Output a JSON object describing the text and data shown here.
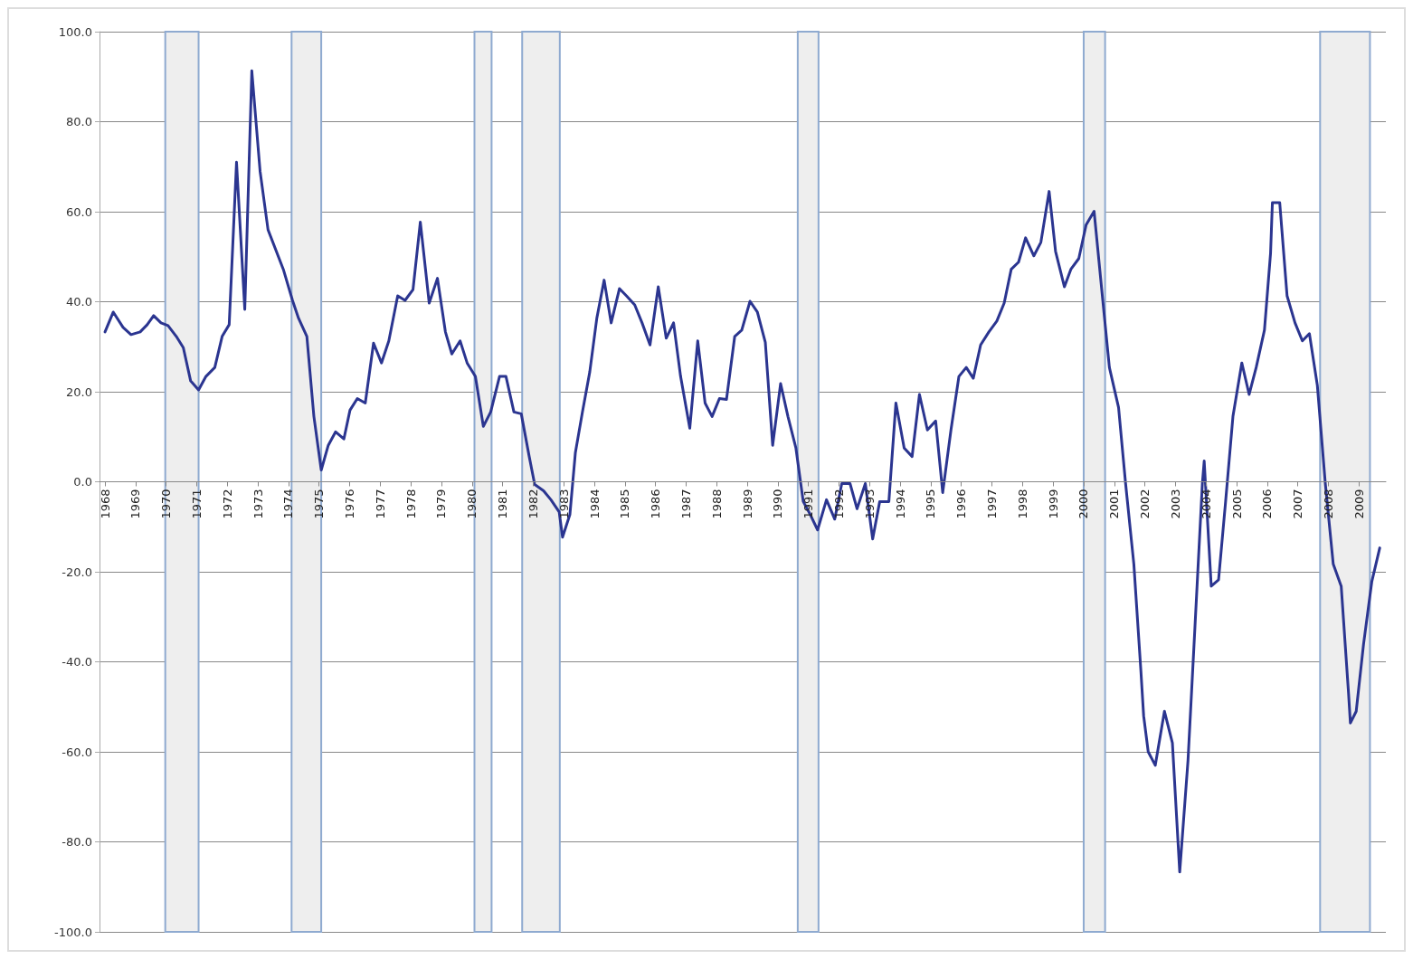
{
  "chart_data": {
    "type": "line",
    "x": [
      1968.0,
      1968.27,
      1968.59,
      1968.85,
      1969.15,
      1969.38,
      1969.59,
      1969.83,
      1970.06,
      1970.33,
      1970.56,
      1970.8,
      1971.06,
      1971.3,
      1971.59,
      1971.83,
      1972.06,
      1972.3,
      1972.57,
      1972.8,
      1973.07,
      1973.33,
      1973.83,
      1974.13,
      1974.33,
      1974.6,
      1974.83,
      1975.07,
      1975.3,
      1975.54,
      1975.81,
      1976.01,
      1976.25,
      1976.51,
      1976.78,
      1977.04,
      1977.28,
      1977.57,
      1977.81,
      1978.07,
      1978.31,
      1978.6,
      1978.87,
      1979.13,
      1979.34,
      1979.61,
      1979.84,
      1980.11,
      1980.37,
      1980.61,
      1980.9,
      1981.11,
      1981.37,
      1981.61,
      1981.87,
      1982.05,
      1982.34,
      1982.58,
      1982.85,
      1982.96,
      1983.2,
      1983.38,
      1983.61,
      1983.85,
      1984.08,
      1984.32,
      1984.55,
      1984.82,
      1985.05,
      1985.32,
      1985.56,
      1985.82,
      1986.09,
      1986.35,
      1986.59,
      1986.82,
      1987.12,
      1987.38,
      1987.62,
      1987.85,
      1988.09,
      1988.32,
      1988.59,
      1988.82,
      1989.09,
      1989.33,
      1989.59,
      1989.83,
      1990.09,
      1990.33,
      1990.59,
      1990.83,
      1991.06,
      1991.3,
      1991.59,
      1991.86,
      1992.09,
      1992.36,
      1992.59,
      1992.86,
      1993.1,
      1993.33,
      1993.63,
      1993.86,
      1994.13,
      1994.39,
      1994.63,
      1994.89,
      1995.16,
      1995.39,
      1995.66,
      1995.92,
      1996.16,
      1996.39,
      1996.63,
      1996.9,
      1997.16,
      1997.4,
      1997.63,
      1997.87,
      1998.1,
      1998.37,
      1998.6,
      1998.87,
      1999.08,
      1999.37,
      1999.58,
      1999.84,
      2000.08,
      2000.34,
      2000.61,
      2000.84,
      2001.14,
      2001.37,
      2001.64,
      2001.87,
      2001.96,
      2002.11,
      2002.34,
      2002.64,
      2002.9,
      2003.14,
      2003.41,
      2003.64,
      2003.88,
      2003.94,
      2004.17,
      2004.41,
      2004.64,
      2004.88,
      2005.17,
      2005.41,
      2005.64,
      2005.91,
      2006.11,
      2006.17,
      2006.41,
      2006.65,
      2006.91,
      2007.15,
      2007.38,
      2007.64,
      2007.9,
      2008.16,
      2008.42,
      2008.66,
      2008.72,
      2008.91,
      2009.15,
      2009.42,
      2009.68
    ],
    "series": [
      {
        "color": "#2b3590",
        "values": [
          33.3,
          37.7,
          34.3,
          32.7,
          33.3,
          34.9,
          36.9,
          35.3,
          34.7,
          32.3,
          29.8,
          22.4,
          20.4,
          23.4,
          25.4,
          32.3,
          34.9,
          71,
          38.3,
          91.3,
          69,
          56,
          47.2,
          40.3,
          36.3,
          32.3,
          14.5,
          2.6,
          8.1,
          11.1,
          9.5,
          15.9,
          18.5,
          17.5,
          30.8,
          26.4,
          31.3,
          41.3,
          40.3,
          42.7,
          57.7,
          39.7,
          45.2,
          33.3,
          28.4,
          31.3,
          26.4,
          23.4,
          12.3,
          15.5,
          23.4,
          23.4,
          15.5,
          15.1,
          5.6,
          -0.6,
          -2,
          -4,
          -6.7,
          -12.3,
          -7.3,
          6.5,
          15.5,
          24.4,
          36.3,
          44.8,
          35.3,
          42.9,
          41.3,
          39.3,
          35.3,
          30.4,
          43.3,
          31.9,
          35.3,
          23.4,
          11.9,
          31.3,
          17.5,
          14.5,
          18.5,
          18.3,
          32.3,
          33.7,
          40.1,
          37.7,
          31,
          8.1,
          21.8,
          14.5,
          7.5,
          -4.4,
          -7.3,
          -10.7,
          -4,
          -8.3,
          -0.4,
          -0.4,
          -6,
          -0.4,
          -12.7,
          -4.4,
          -4.4,
          17.5,
          7.5,
          5.6,
          19.4,
          11.5,
          13.5,
          -2.4,
          11.5,
          23.4,
          25.4,
          23,
          30.4,
          33.3,
          35.7,
          39.7,
          47.2,
          48.8,
          54.2,
          50.2,
          53.2,
          64.5,
          51.2,
          43.3,
          47.2,
          49.6,
          57.1,
          60.1,
          41.3,
          25.4,
          16.5,
          -0.4,
          -18.3,
          -42,
          -52,
          -60,
          -63,
          -51,
          -58,
          -86.7,
          -62,
          -32,
          -0.4,
          4.6,
          -23.2,
          -21.8,
          -4.4,
          14.5,
          26.4,
          19.4,
          25.4,
          33.7,
          50.8,
          62,
          62,
          41.3,
          35.3,
          31.3,
          32.9,
          21.4,
          -0.4,
          -18.3,
          -23.2,
          -47,
          -53.6,
          -51,
          -36.1,
          -22.2,
          -14.7
        ]
      }
    ],
    "xlim": [
      1967.82,
      2009.88
    ],
    "xticks": [
      1968,
      1969,
      1970,
      1971,
      1972,
      1973,
      1974,
      1975,
      1976,
      1977,
      1978,
      1979,
      1980,
      1981,
      1982,
      1983,
      1984,
      1985,
      1986,
      1987,
      1988,
      1989,
      1990,
      1991,
      1992,
      1993,
      1994,
      1995,
      1996,
      1997,
      1998,
      1999,
      2000,
      2001,
      2002,
      2003,
      2004,
      2005,
      2006,
      2007,
      2008,
      2009
    ],
    "ylim": [
      -100,
      100
    ],
    "yticks": [
      {
        "value": -100,
        "label": "-100.0"
      },
      {
        "value": -80,
        "label": "-80.0"
      },
      {
        "value": -60,
        "label": "-60.0"
      },
      {
        "value": -40,
        "label": "-40.0"
      },
      {
        "value": -20,
        "label": "-20.0"
      },
      {
        "value": 0,
        "label": "0.0"
      },
      {
        "value": 20,
        "label": "20.0"
      },
      {
        "value": 40,
        "label": "40.0"
      },
      {
        "value": 60,
        "label": "60.0"
      },
      {
        "value": 80,
        "label": "80.0"
      },
      {
        "value": 100,
        "label": "100.0"
      }
    ],
    "bands": [
      {
        "axis": "x",
        "from": 1969.97,
        "to": 1971.06,
        "color": "#eeeeee"
      },
      {
        "axis": "x",
        "from": 1974.1,
        "to": 1975.07,
        "color": "#eeeeee"
      },
      {
        "axis": "x",
        "from": 1980.08,
        "to": 1980.64,
        "color": "#eeeeee"
      },
      {
        "axis": "x",
        "from": 1981.64,
        "to": 1982.87,
        "color": "#eeeeee"
      },
      {
        "axis": "x",
        "from": 1990.65,
        "to": 1991.33,
        "color": "#eeeeee"
      },
      {
        "axis": "x",
        "from": 2000.0,
        "to": 2000.7,
        "color": "#eeeeee"
      },
      {
        "axis": "x",
        "from": 2007.73,
        "to": 2009.36,
        "color": "#eeeeee"
      }
    ],
    "grid": "y",
    "marker": "none",
    "line_style": "solid"
  }
}
